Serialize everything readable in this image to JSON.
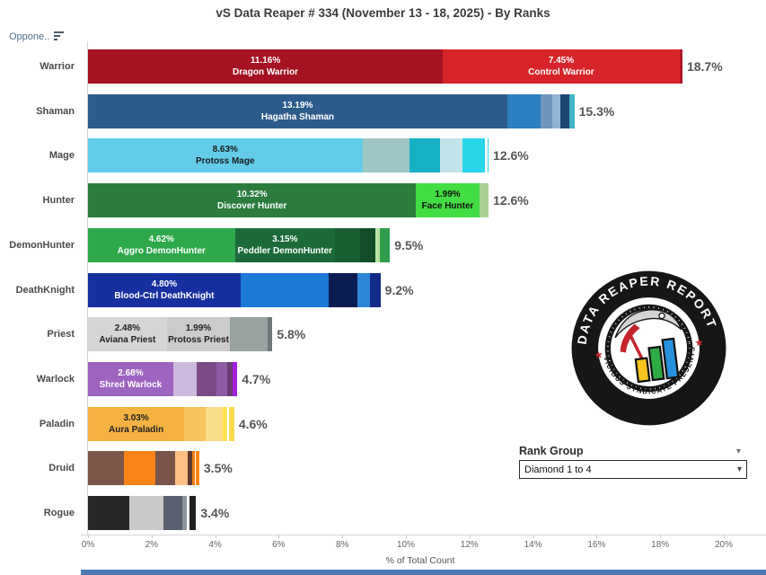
{
  "title": "vS Data Reaper # 334 (November 13 - 18, 2025) - By Ranks",
  "header": {
    "column_label": "Oppone.."
  },
  "axis": {
    "title": "% of Total Count",
    "tick_values": [
      0,
      2,
      4,
      6,
      8,
      10,
      12,
      14,
      16,
      18,
      20
    ],
    "tick_labels": [
      "0%",
      "2%",
      "4%",
      "6%",
      "8%",
      "10%",
      "12%",
      "14%",
      "16%",
      "18%",
      "20%"
    ]
  },
  "rank_group": {
    "label": "Rank Group",
    "selected": "Diamond 1 to 4"
  },
  "logo": {
    "top_text": "DATA REAPER REPORT",
    "bottom_text": "VICIOUS SYNDICATE PRESENTS",
    "star": "★",
    "bar_colors": [
      "#f7c41f",
      "#2fab44",
      "#2792db"
    ],
    "accent_red": "#c4252b"
  },
  "chart_data": {
    "type": "bar",
    "orientation": "horizontal",
    "unit": "%",
    "xlabel": "% of Total Count",
    "xlim": [
      0,
      21.3
    ],
    "categories": [
      "Warrior",
      "Shaman",
      "Mage",
      "Hunter",
      "DemonHunter",
      "DeathKnight",
      "Priest",
      "Warlock",
      "Paladin",
      "Druid",
      "Rogue"
    ],
    "totals": [
      18.7,
      15.3,
      12.6,
      12.6,
      9.5,
      9.2,
      5.8,
      4.7,
      4.6,
      3.5,
      3.4
    ],
    "rows": [
      {
        "category": "Warrior",
        "total": 18.7,
        "total_label": "18.7%",
        "segments": [
          {
            "value": 11.16,
            "color": "#a51222",
            "pct_label": "11.16%",
            "name": "Dragon Warrior",
            "text_color": "#ffffff"
          },
          {
            "value": 7.45,
            "color": "#d7242a",
            "pct_label": "7.45%",
            "name": "Control Warrior",
            "text_color": "#ffffff"
          },
          {
            "value": 0.09,
            "color": "#b11626"
          }
        ]
      },
      {
        "category": "Shaman",
        "total": 15.3,
        "total_label": "15.3%",
        "segments": [
          {
            "value": 13.19,
            "color": "#2d5c8c",
            "pct_label": "13.19%",
            "name": "Hagatha Shaman",
            "text_color": "#ffffff"
          },
          {
            "value": 1.05,
            "color": "#2d7fc1"
          },
          {
            "value": 0.36,
            "color": "#7096bc"
          },
          {
            "value": 0.26,
            "color": "#92b4d4"
          },
          {
            "value": 0.28,
            "color": "#1d4670"
          },
          {
            "value": 0.16,
            "color": "#3fb5c4"
          }
        ]
      },
      {
        "category": "Mage",
        "total": 12.6,
        "total_label": "12.6%",
        "segments": [
          {
            "value": 8.63,
            "color": "#63cde9",
            "pct_label": "8.63%",
            "name": "Protoss Mage",
            "text_color": "#1a1a1a"
          },
          {
            "value": 1.48,
            "color": "#9fc6c4"
          },
          {
            "value": 0.96,
            "color": "#17b0c4"
          },
          {
            "value": 0.72,
            "color": "#c2e3ea"
          },
          {
            "value": 0.71,
            "color": "#28d4e8"
          },
          {
            "value": 0.06,
            "color": "#ffffff"
          },
          {
            "value": 0.04,
            "color": "#2bd5ea"
          }
        ]
      },
      {
        "category": "Hunter",
        "total": 12.6,
        "total_label": "12.6%",
        "segments": [
          {
            "value": 10.32,
            "color": "#2c7c3e",
            "pct_label": "10.32%",
            "name": "Discover Hunter",
            "text_color": "#ffffff"
          },
          {
            "value": 1.99,
            "color": "#42dd42",
            "pct_label": "1.99%",
            "name": "Face Hunter",
            "text_color": "#111111"
          },
          {
            "value": 0.29,
            "color": "#abd096"
          }
        ]
      },
      {
        "category": "DemonHunter",
        "total": 9.5,
        "total_label": "9.5%",
        "segments": [
          {
            "value": 4.62,
            "color": "#2da84b",
            "pct_label": "4.62%",
            "name": "Aggro DemonHunter",
            "text_color": "#ffffff"
          },
          {
            "value": 3.15,
            "color": "#1c6a39",
            "pct_label": "3.15%",
            "name": "Peddler DemonHunter",
            "text_color": "#ffffff"
          },
          {
            "value": 0.8,
            "color": "#1a5e33"
          },
          {
            "value": 0.48,
            "color": "#124d28"
          },
          {
            "value": 0.13,
            "color": "#b9e2a5"
          },
          {
            "value": 0.32,
            "color": "#2f9e4d"
          }
        ]
      },
      {
        "category": "DeathKnight",
        "total": 9.2,
        "total_label": "9.2%",
        "segments": [
          {
            "value": 4.8,
            "color": "#1630a0",
            "pct_label": "4.80%",
            "name": "Blood-Ctrl DeathKnight",
            "text_color": "#ffffff"
          },
          {
            "value": 2.76,
            "color": "#1d79d6"
          },
          {
            "value": 0.92,
            "color": "#0a1c52"
          },
          {
            "value": 0.38,
            "color": "#2e86d6"
          },
          {
            "value": 0.34,
            "color": "#132c88"
          }
        ]
      },
      {
        "category": "Priest",
        "total": 5.8,
        "total_label": "5.8%",
        "segments": [
          {
            "value": 2.48,
            "color": "#d5d5d5",
            "pct_label": "2.48%",
            "name": "Aviana Priest",
            "text_color": "#222222"
          },
          {
            "value": 1.99,
            "color": "#cbcbcb",
            "pct_label": "1.99%",
            "name": "Protoss Priest",
            "text_color": "#222222"
          },
          {
            "value": 1.18,
            "color": "#99a1a1"
          },
          {
            "value": 0.15,
            "color": "#6d7878"
          }
        ]
      },
      {
        "category": "Warlock",
        "total": 4.7,
        "total_label": "4.7%",
        "segments": [
          {
            "value": 2.68,
            "color": "#9d64c0",
            "pct_label": "2.68%",
            "name": "Shred Warlock",
            "text_color": "#ffffff"
          },
          {
            "value": 0.74,
            "color": "#cdb9de"
          },
          {
            "value": 0.62,
            "color": "#7b4a87"
          },
          {
            "value": 0.34,
            "color": "#8d5ba3"
          },
          {
            "value": 0.17,
            "color": "#6a3c76"
          },
          {
            "value": 0.15,
            "color": "#a21fe6"
          }
        ]
      },
      {
        "category": "Paladin",
        "total": 4.6,
        "total_label": "4.6%",
        "segments": [
          {
            "value": 3.03,
            "color": "#f4b242",
            "pct_label": "3.03%",
            "name": "Aura Paladin",
            "text_color": "#222222"
          },
          {
            "value": 0.66,
            "color": "#f6c55f"
          },
          {
            "value": 0.56,
            "color": "#f8dd8d"
          },
          {
            "value": 0.13,
            "color": "#ffe44f"
          },
          {
            "value": 0.07,
            "color": "#ffffff"
          },
          {
            "value": 0.15,
            "color": "#f8d84f"
          }
        ]
      },
      {
        "category": "Druid",
        "total": 3.5,
        "total_label": "3.5%",
        "segments": [
          {
            "value": 1.12,
            "color": "#7c5749"
          },
          {
            "value": 1.0,
            "color": "#fb8418"
          },
          {
            "value": 0.63,
            "color": "#7a544a"
          },
          {
            "value": 0.4,
            "color": "#fdbf82"
          },
          {
            "value": 0.12,
            "color": "#5d3b31"
          },
          {
            "value": 0.08,
            "color": "#ef7d14"
          },
          {
            "value": 0.05,
            "color": "#ffffff"
          },
          {
            "value": 0.1,
            "color": "#fb8418"
          }
        ]
      },
      {
        "category": "Rogue",
        "total": 3.4,
        "total_label": "3.4%",
        "segments": [
          {
            "value": 1.3,
            "color": "#272727"
          },
          {
            "value": 1.08,
            "color": "#c9c9c9"
          },
          {
            "value": 0.58,
            "color": "#596070"
          },
          {
            "value": 0.14,
            "color": "#8e949b"
          },
          {
            "value": 0.1,
            "color": "#ffffff"
          },
          {
            "value": 0.2,
            "color": "#1f1f1f"
          }
        ]
      }
    ]
  }
}
